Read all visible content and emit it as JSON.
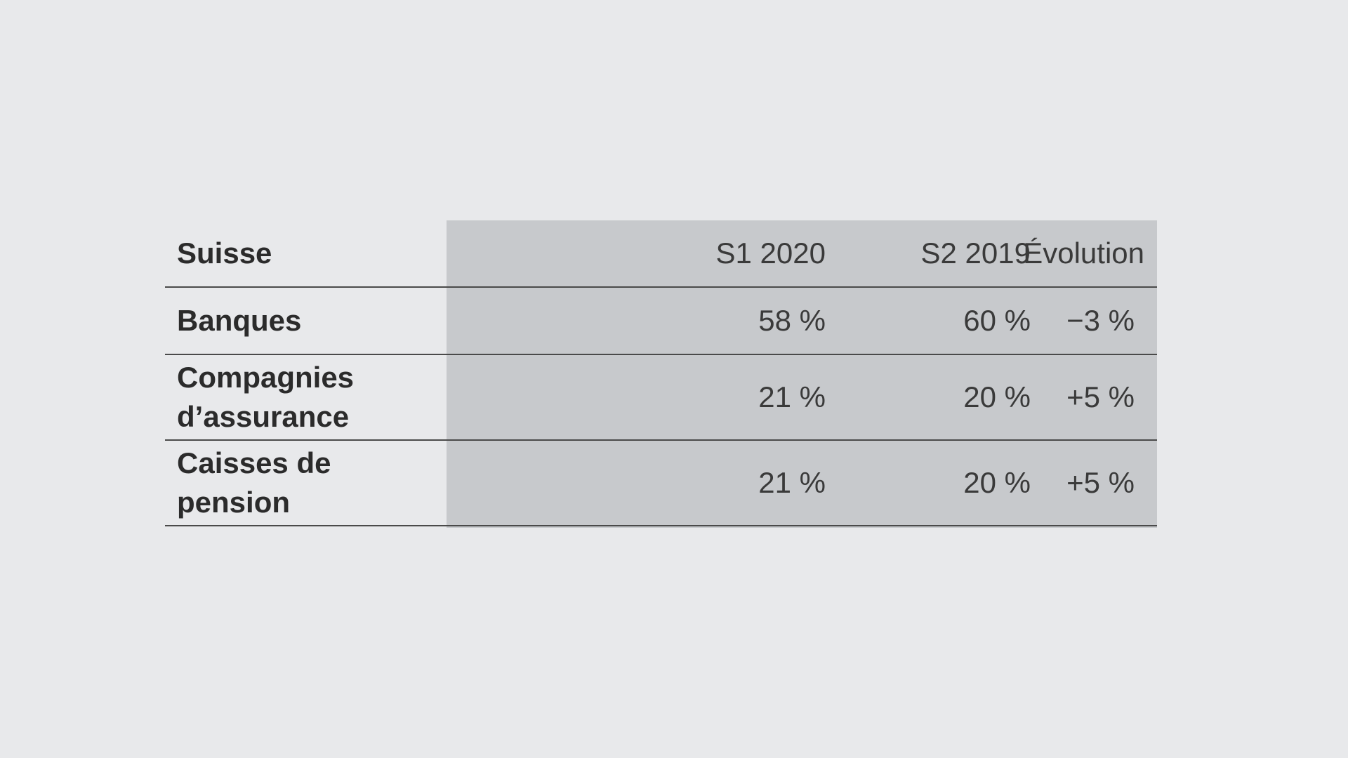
{
  "table": {
    "header": {
      "label": "Suisse",
      "col1": "S1 2020",
      "col2": "S2 2019",
      "col3": "Évolution"
    },
    "rows": [
      {
        "label": "Banques",
        "col1": "58 %",
        "col2": "60 %",
        "col3": "−3 %"
      },
      {
        "label": "Compagnies d’assurance",
        "col1": "21 %",
        "col2": "20 %",
        "col3": "+5 %"
      },
      {
        "label": "Caisses de pension",
        "col1": "21 %",
        "col2": "20 %",
        "col3": "+5 %"
      }
    ]
  },
  "colors": {
    "background": "#e8e9eb",
    "shaded_columns": "#c7c9cc",
    "rule": "#4a4a4a"
  }
}
